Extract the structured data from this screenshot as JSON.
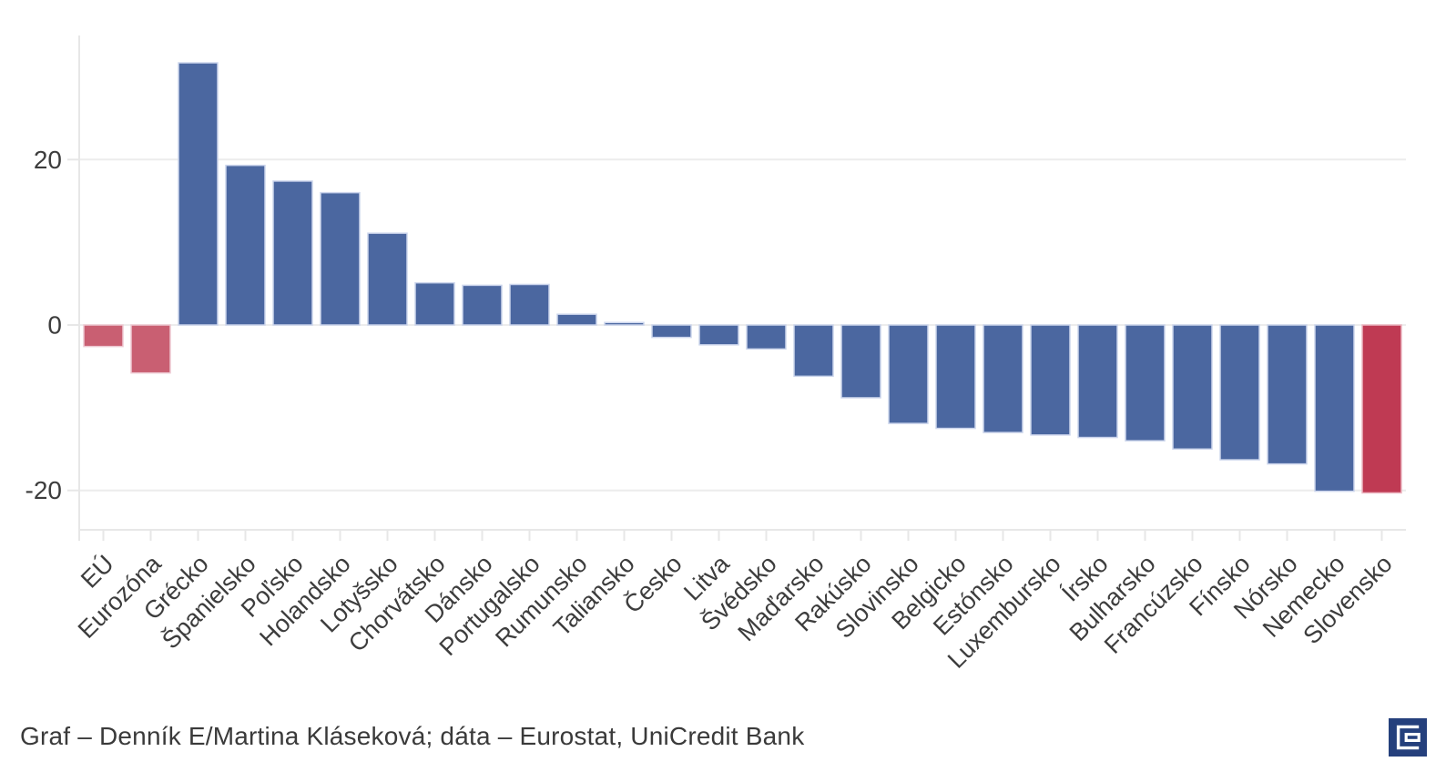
{
  "chart_data": {
    "type": "bar",
    "categories": [
      "EÚ",
      "Eurozóna",
      "Grécko",
      "Španielsko",
      "Poľsko",
      "Holandsko",
      "Lotyšsko",
      "Chorvátsko",
      "Dánsko",
      "Portugalsko",
      "Rumunsko",
      "Taliansko",
      "Česko",
      "Litva",
      "Švédsko",
      "Maďarsko",
      "Rakúsko",
      "Slovinsko",
      "Belgicko",
      "Estónsko",
      "Luxembursko",
      "Írsko",
      "Bulharsko",
      "Francúzsko",
      "Fínsko",
      "Nórsko",
      "Nemecko",
      "Slovensko"
    ],
    "values": [
      -2.6,
      -5.8,
      31.7,
      19.3,
      17.4,
      16.0,
      11.1,
      5.1,
      4.8,
      4.9,
      1.3,
      0.3,
      -1.5,
      -2.4,
      -2.9,
      -6.2,
      -8.8,
      -11.9,
      -12.5,
      -13.0,
      -13.3,
      -13.6,
      -14.0,
      -15.0,
      -16.3,
      -16.8,
      -20.1,
      -20.3
    ],
    "bar_colors": [
      "rose",
      "rose",
      "blue",
      "blue",
      "blue",
      "blue",
      "blue",
      "blue",
      "blue",
      "blue",
      "blue",
      "blue",
      "blue",
      "blue",
      "blue",
      "blue",
      "blue",
      "blue",
      "blue",
      "blue",
      "blue",
      "blue",
      "blue",
      "blue",
      "blue",
      "blue",
      "blue",
      "red"
    ],
    "title": "",
    "xlabel": "",
    "ylabel": "",
    "ylim": [
      -25,
      35
    ],
    "yticks": [
      {
        "label": "20",
        "value": 20
      },
      {
        "label": "0",
        "value": 0
      },
      {
        "label": "-20",
        "value": -20
      }
    ],
    "grid": "horizontal",
    "legend": "none",
    "x_label_rotation_deg": -45
  },
  "caption": {
    "text": "Graf – Denník E/Martina Kláseková; dáta – Eurostat, UniCredit Bank"
  },
  "logo": {
    "name": "Denník E",
    "letter": "E"
  },
  "colors": {
    "background": "#ffffff",
    "bar_blue": "#4b67a0",
    "bar_blue_stroke": "#ccd5ec",
    "bar_rose": "#c95f72",
    "bar_rose_stroke": "#eec9d2",
    "bar_red": "#bf3a53",
    "bar_red_stroke": "#ecb7c2",
    "gridline": "#ececec",
    "axis": "#e7e7e7",
    "tick_text": "#3d3d3d",
    "caption_text": "#3a3a3a",
    "logo_navy": "#25407c",
    "logo_glyph": "#ffffff"
  }
}
